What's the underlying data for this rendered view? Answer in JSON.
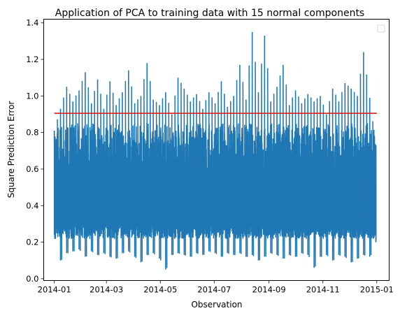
{
  "chart_data": {
    "type": "line",
    "title": "Application of PCA to training data with 15 normal components",
    "xlabel": "Observation",
    "ylabel": "Square Prediction Error",
    "x_range": [
      "2014-01-01",
      "2015-01-01"
    ],
    "xlim": [
      "2013-12-20",
      "2015-01-15"
    ],
    "ylim": [
      -0.01,
      1.42
    ],
    "x_ticks": [
      "2014-01",
      "2014-03",
      "2014-05",
      "2014-07",
      "2014-09",
      "2014-11",
      "2015-01"
    ],
    "y_ticks": [
      "0.0",
      "0.2",
      "0.4",
      "0.6",
      "0.8",
      "1.0",
      "1.2",
      "1.4"
    ],
    "grid": false,
    "legend": {
      "location": "top-right",
      "entries": []
    },
    "series": [
      {
        "color": "#1f77b4",
        "x": [
          "2014-01-01",
          "2014-01-08",
          "2014-01-15",
          "2014-01-22",
          "2014-01-29",
          "2014-02-05",
          "2014-02-12",
          "2014-02-19",
          "2014-02-26",
          "2014-03-05",
          "2014-03-12",
          "2014-03-19",
          "2014-03-26",
          "2014-04-02",
          "2014-04-09",
          "2014-04-16",
          "2014-04-23",
          "2014-04-30",
          "2014-05-07",
          "2014-05-14",
          "2014-05-21",
          "2014-05-28",
          "2014-06-04",
          "2014-06-11",
          "2014-06-18",
          "2014-06-25",
          "2014-07-02",
          "2014-07-09",
          "2014-07-16",
          "2014-07-23",
          "2014-07-30",
          "2014-08-06",
          "2014-08-13",
          "2014-08-20",
          "2014-08-27",
          "2014-09-03",
          "2014-09-10",
          "2014-09-17",
          "2014-09-24",
          "2014-10-01",
          "2014-10-08",
          "2014-10-15",
          "2014-10-22",
          "2014-10-29",
          "2014-11-05",
          "2014-11-12",
          "2014-11-19",
          "2014-11-26",
          "2014-12-03",
          "2014-12-10",
          "2014-12-17",
          "2014-12-24",
          "2014-12-31"
        ],
        "min": [
          0.24,
          0.1,
          0.14,
          0.15,
          0.16,
          0.12,
          0.15,
          0.13,
          0.14,
          0.12,
          0.11,
          0.14,
          0.15,
          0.12,
          0.09,
          0.13,
          0.14,
          0.11,
          0.05,
          0.13,
          0.14,
          0.13,
          0.12,
          0.14,
          0.13,
          0.15,
          0.14,
          0.12,
          0.14,
          0.13,
          0.14,
          0.12,
          0.13,
          0.1,
          0.12,
          0.14,
          0.13,
          0.11,
          0.13,
          0.12,
          0.14,
          0.13,
          0.06,
          0.12,
          0.13,
          0.1,
          0.13,
          0.12,
          0.09,
          0.11,
          0.13,
          0.12,
          0.2
        ],
        "max": [
          0.81,
          0.93,
          1.05,
          0.97,
          1.03,
          1.13,
          0.96,
          1.09,
          0.93,
          1.08,
          0.95,
          1.02,
          1.14,
          0.96,
          1.0,
          1.18,
          0.98,
          0.95,
          1.02,
          0.9,
          1.1,
          1.04,
          0.97,
          1.01,
          0.93,
          1.02,
          0.96,
          1.08,
          0.94,
          1.0,
          1.17,
          0.98,
          1.35,
          1.02,
          1.33,
          0.97,
          1.05,
          1.17,
          0.95,
          1.03,
          0.96,
          1.01,
          0.97,
          1.0,
          0.9,
          1.04,
          0.97,
          1.07,
          1.04,
          1.0,
          1.24,
          0.99,
          0.73
        ]
      },
      {
        "color": "#d62728",
        "x": [
          "2014-01-01",
          "2015-01-01"
        ],
        "values": [
          0.905,
          0.905
        ]
      }
    ]
  }
}
